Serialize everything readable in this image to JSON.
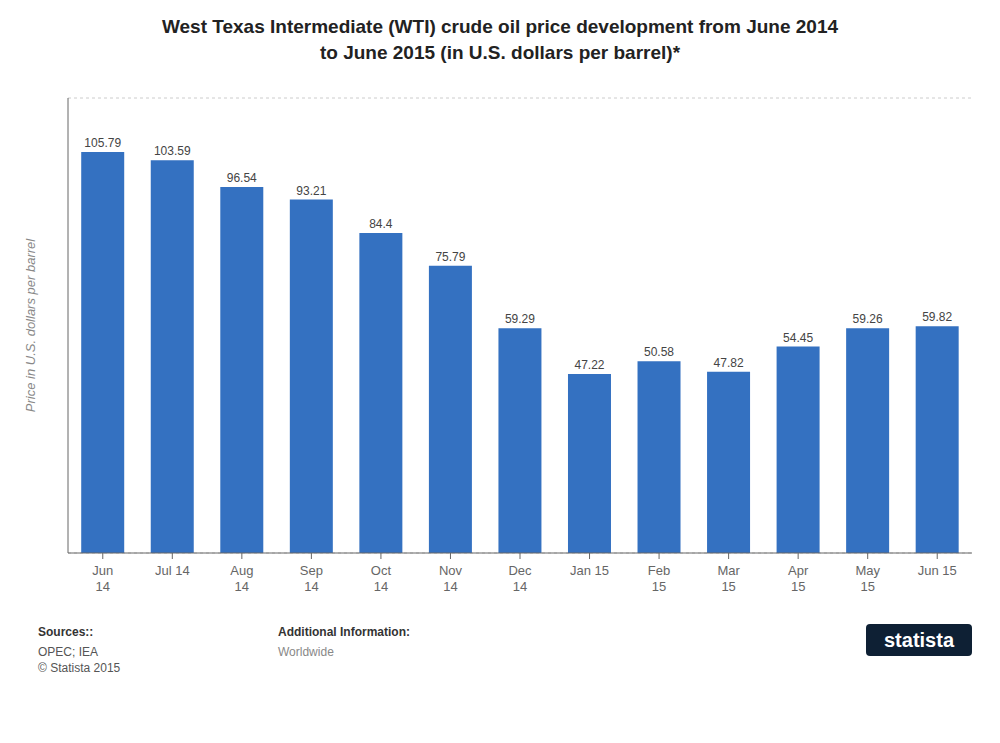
{
  "chart_data": {
    "type": "bar",
    "title": "West Texas Intermediate (WTI) crude oil price development from June 2014\nto June 2015 (in U.S. dollars per barrel)*",
    "categories": [
      "Jun\n14",
      "Jul 14",
      "Aug\n14",
      "Sep\n14",
      "Oct\n14",
      "Nov\n14",
      "Dec\n14",
      "Jan 15",
      "Feb\n15",
      "Mar\n15",
      "Apr\n15",
      "May\n15",
      "Jun 15"
    ],
    "values": [
      105.79,
      103.59,
      96.54,
      93.21,
      84.4,
      75.79,
      59.29,
      47.22,
      50.58,
      47.82,
      54.45,
      59.26,
      59.82
    ],
    "color": "#3471c1",
    "ylabel": "Price in U.S. dollars per barrel",
    "ylim": [
      0,
      120
    ],
    "yticks": [
      0,
      20,
      40,
      60,
      80,
      100,
      120
    ],
    "grid": true,
    "data_labels": true,
    "tick_labels": "x",
    "annotations": [
      "Sources::",
      "OPEC; IEA\n© Statista 2015",
      "Additional Information:",
      "Worldwide",
      "statista"
    ]
  }
}
